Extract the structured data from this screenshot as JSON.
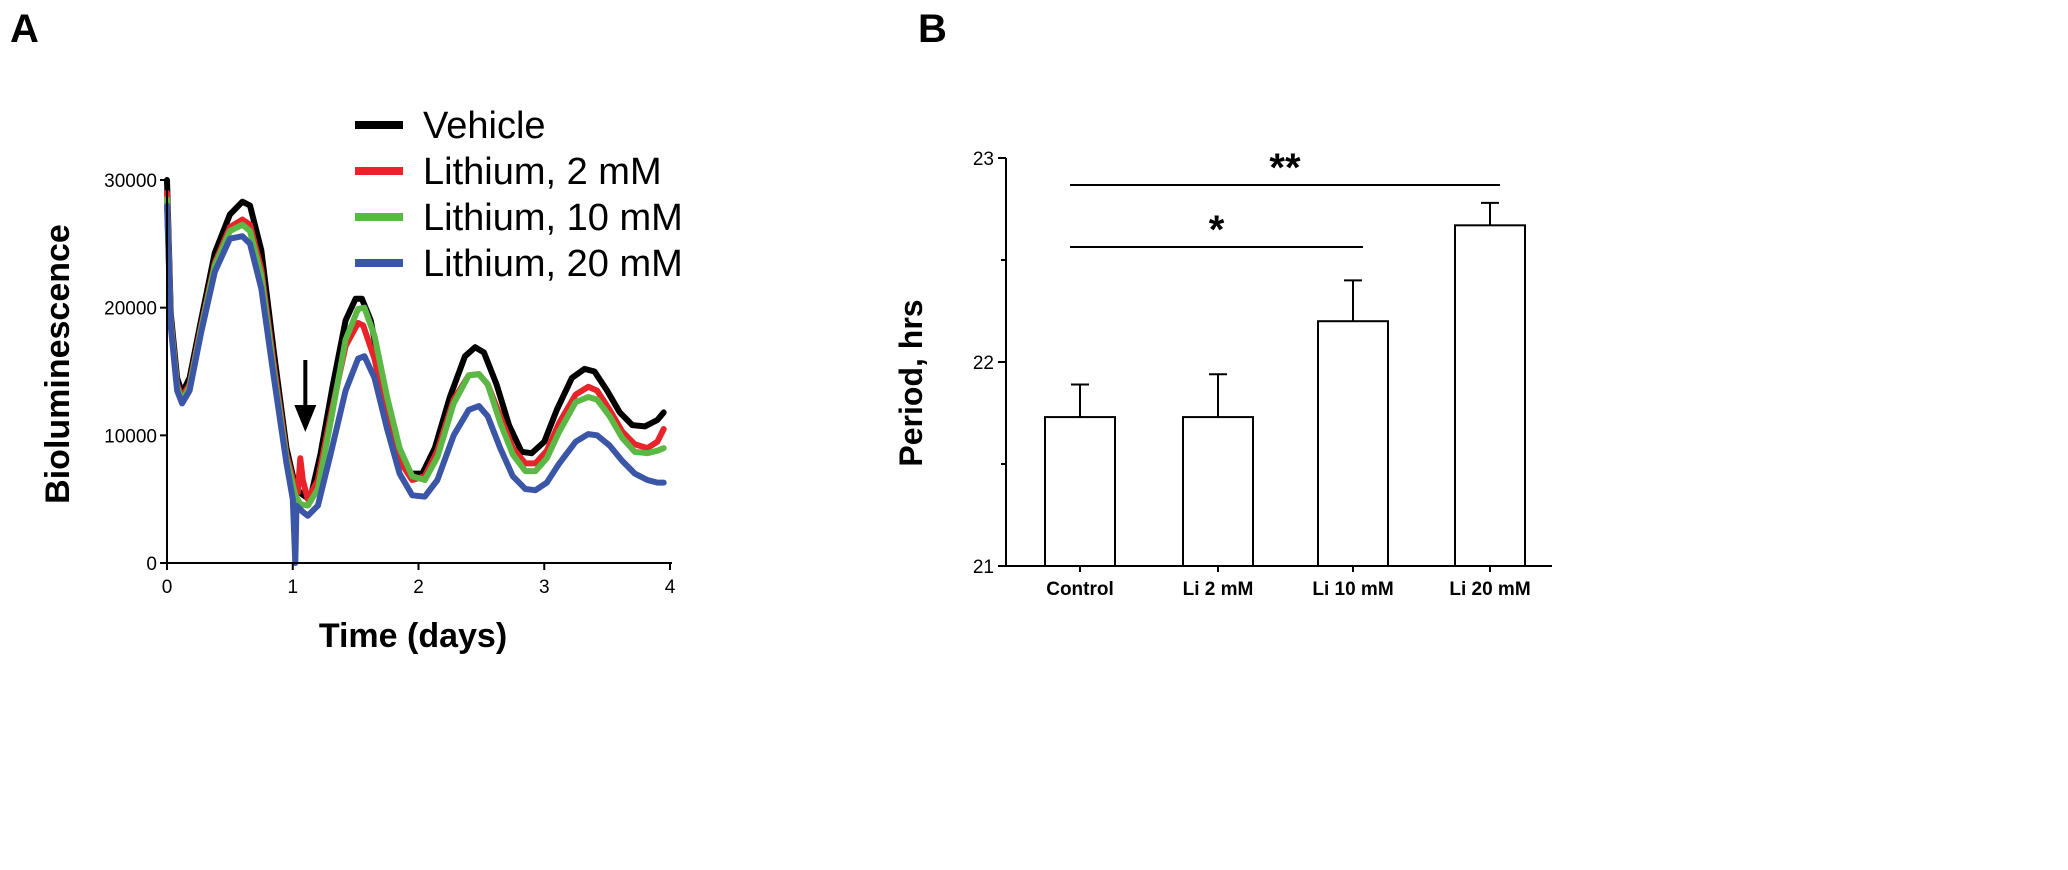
{
  "chart_data": [
    {
      "panel_label": "A",
      "type": "line",
      "xlabel": "Time (days)",
      "ylabel": "Bioluminescence",
      "xlim": [
        0,
        4
      ],
      "ylim": [
        0,
        30000
      ],
      "x_ticks": [
        0,
        1,
        2,
        3,
        4
      ],
      "y_ticks": [
        0,
        10000,
        20000,
        30000
      ],
      "x_tick_labels": [
        "0",
        "1",
        "2",
        "3",
        "4"
      ],
      "y_tick_labels": [
        "0",
        "10000",
        "20000",
        "30000"
      ],
      "legend_position": "top-right",
      "annotation": "arrow at day 1.1 (drug addition)",
      "series": [
        {
          "name": "Vehicle",
          "color": "#000000",
          "points": [
            [
              0,
              30000
            ],
            [
              0.03,
              19500
            ],
            [
              0.08,
              14500
            ],
            [
              0.12,
              13300
            ],
            [
              0.18,
              14500
            ],
            [
              0.27,
              19000
            ],
            [
              0.38,
              24300
            ],
            [
              0.5,
              27300
            ],
            [
              0.6,
              28300
            ],
            [
              0.66,
              28000
            ],
            [
              0.75,
              24500
            ],
            [
              0.85,
              16500
            ],
            [
              0.95,
              9000
            ],
            [
              1.02,
              6000
            ],
            [
              1.06,
              5500
            ],
            [
              1.1,
              5200
            ],
            [
              1.15,
              5500
            ],
            [
              1.22,
              8500
            ],
            [
              1.32,
              14000
            ],
            [
              1.42,
              19000
            ],
            [
              1.5,
              20700
            ],
            [
              1.55,
              20700
            ],
            [
              1.62,
              19000
            ],
            [
              1.72,
              14000
            ],
            [
              1.82,
              9500
            ],
            [
              1.92,
              7000
            ],
            [
              2.03,
              7000
            ],
            [
              2.13,
              9000
            ],
            [
              2.25,
              13000
            ],
            [
              2.37,
              16200
            ],
            [
              2.45,
              16900
            ],
            [
              2.52,
              16500
            ],
            [
              2.62,
              14000
            ],
            [
              2.72,
              10800
            ],
            [
              2.82,
              8700
            ],
            [
              2.9,
              8600
            ],
            [
              3.0,
              9500
            ],
            [
              3.1,
              12000
            ],
            [
              3.22,
              14500
            ],
            [
              3.32,
              15200
            ],
            [
              3.4,
              15000
            ],
            [
              3.5,
              13500
            ],
            [
              3.6,
              11800
            ],
            [
              3.7,
              10800
            ],
            [
              3.8,
              10700
            ],
            [
              3.9,
              11200
            ],
            [
              3.95,
              11800
            ]
          ]
        },
        {
          "name": "Lithium, 2 mM",
          "color": "#e8242a",
          "points": [
            [
              0,
              29000
            ],
            [
              0.03,
              19000
            ],
            [
              0.08,
              14000
            ],
            [
              0.12,
              13000
            ],
            [
              0.18,
              14000
            ],
            [
              0.27,
              18500
            ],
            [
              0.38,
              23500
            ],
            [
              0.5,
              26300
            ],
            [
              0.6,
              26900
            ],
            [
              0.66,
              26500
            ],
            [
              0.75,
              23000
            ],
            [
              0.85,
              15500
            ],
            [
              0.95,
              8500
            ],
            [
              1.02,
              5800
            ],
            [
              1.04,
              5500
            ],
            [
              1.06,
              8200
            ],
            [
              1.08,
              6500
            ],
            [
              1.12,
              5000
            ],
            [
              1.2,
              6500
            ],
            [
              1.3,
              11500
            ],
            [
              1.42,
              17000
            ],
            [
              1.52,
              18800
            ],
            [
              1.56,
              18600
            ],
            [
              1.65,
              16000
            ],
            [
              1.75,
              11500
            ],
            [
              1.85,
              8000
            ],
            [
              1.95,
              6500
            ],
            [
              2.05,
              6800
            ],
            [
              2.15,
              8800
            ],
            [
              2.28,
              12800
            ],
            [
              2.4,
              14700
            ],
            [
              2.48,
              14800
            ],
            [
              2.55,
              14000
            ],
            [
              2.65,
              11500
            ],
            [
              2.75,
              9000
            ],
            [
              2.85,
              7800
            ],
            [
              2.93,
              7800
            ],
            [
              3.02,
              8800
            ],
            [
              3.12,
              11000
            ],
            [
              3.25,
              13200
            ],
            [
              3.35,
              13800
            ],
            [
              3.42,
              13500
            ],
            [
              3.52,
              12000
            ],
            [
              3.62,
              10300
            ],
            [
              3.72,
              9300
            ],
            [
              3.82,
              9000
            ],
            [
              3.9,
              9500
            ],
            [
              3.95,
              10500
            ]
          ]
        },
        {
          "name": "Lithium, 10 mM",
          "color": "#5cb845",
          "points": [
            [
              0,
              28500
            ],
            [
              0.03,
              18800
            ],
            [
              0.08,
              13800
            ],
            [
              0.12,
              12700
            ],
            [
              0.18,
              13800
            ],
            [
              0.27,
              18300
            ],
            [
              0.38,
              23300
            ],
            [
              0.5,
              26000
            ],
            [
              0.6,
              26500
            ],
            [
              0.66,
              26000
            ],
            [
              0.75,
              22500
            ],
            [
              0.85,
              15000
            ],
            [
              0.95,
              8200
            ],
            [
              1.02,
              5300
            ],
            [
              1.06,
              4600
            ],
            [
              1.12,
              4500
            ],
            [
              1.2,
              5800
            ],
            [
              1.3,
              11000
            ],
            [
              1.42,
              17500
            ],
            [
              1.52,
              19900
            ],
            [
              1.57,
              20000
            ],
            [
              1.65,
              17800
            ],
            [
              1.75,
              13000
            ],
            [
              1.85,
              9000
            ],
            [
              1.95,
              6800
            ],
            [
              2.05,
              6500
            ],
            [
              2.15,
              8300
            ],
            [
              2.28,
              12500
            ],
            [
              2.4,
              14700
            ],
            [
              2.48,
              14800
            ],
            [
              2.55,
              14000
            ],
            [
              2.65,
              11000
            ],
            [
              2.75,
              8500
            ],
            [
              2.85,
              7200
            ],
            [
              2.93,
              7200
            ],
            [
              3.02,
              8200
            ],
            [
              3.12,
              10300
            ],
            [
              3.25,
              12600
            ],
            [
              3.35,
              13000
            ],
            [
              3.42,
              12800
            ],
            [
              3.52,
              11500
            ],
            [
              3.62,
              9800
            ],
            [
              3.72,
              8700
            ],
            [
              3.82,
              8600
            ],
            [
              3.9,
              8800
            ],
            [
              3.95,
              9000
            ]
          ]
        },
        {
          "name": "Lithium, 20 mM",
          "color": "#3b56a6",
          "points": [
            [
              0,
              28000
            ],
            [
              0.03,
              18500
            ],
            [
              0.08,
              13500
            ],
            [
              0.12,
              12500
            ],
            [
              0.18,
              13500
            ],
            [
              0.27,
              18000
            ],
            [
              0.38,
              22800
            ],
            [
              0.5,
              25400
            ],
            [
              0.6,
              25600
            ],
            [
              0.66,
              25000
            ],
            [
              0.75,
              21500
            ],
            [
              0.85,
              14500
            ],
            [
              0.95,
              7800
            ],
            [
              1.0,
              5000
            ],
            [
              1.02,
              0
            ],
            [
              1.03,
              4500
            ],
            [
              1.08,
              4000
            ],
            [
              1.12,
              3700
            ],
            [
              1.2,
              4500
            ],
            [
              1.3,
              8500
            ],
            [
              1.42,
              13500
            ],
            [
              1.52,
              16000
            ],
            [
              1.57,
              16200
            ],
            [
              1.65,
              14500
            ],
            [
              1.75,
              10500
            ],
            [
              1.85,
              7000
            ],
            [
              1.95,
              5300
            ],
            [
              2.05,
              5200
            ],
            [
              2.15,
              6500
            ],
            [
              2.28,
              10000
            ],
            [
              2.4,
              12000
            ],
            [
              2.48,
              12300
            ],
            [
              2.55,
              11500
            ],
            [
              2.65,
              9000
            ],
            [
              2.75,
              6800
            ],
            [
              2.85,
              5800
            ],
            [
              2.93,
              5700
            ],
            [
              3.02,
              6300
            ],
            [
              3.12,
              7800
            ],
            [
              3.25,
              9500
            ],
            [
              3.35,
              10100
            ],
            [
              3.42,
              10000
            ],
            [
              3.52,
              9200
            ],
            [
              3.62,
              8000
            ],
            [
              3.72,
              7000
            ],
            [
              3.82,
              6500
            ],
            [
              3.9,
              6300
            ],
            [
              3.95,
              6300
            ]
          ]
        }
      ]
    },
    {
      "panel_label": "B",
      "type": "bar",
      "xlabel": "",
      "ylabel": "Period, hrs",
      "ylim": [
        21,
        23
      ],
      "y_ticks": [
        21,
        22,
        23
      ],
      "y_tick_labels": [
        "21",
        "22",
        "23"
      ],
      "categories": [
        "Control",
        "Li 2 mM",
        "Li 10 mM",
        "Li 20 mM"
      ],
      "values": [
        21.73,
        21.73,
        22.2,
        22.67
      ],
      "errors": [
        0.16,
        0.21,
        0.2,
        0.11
      ],
      "bar_fill": "#ffffff",
      "bar_stroke": "#000000",
      "significance": [
        {
          "from": "Control",
          "to": "Li 10 mM",
          "label": "*"
        },
        {
          "from": "Control",
          "to": "Li 20 mM",
          "label": "**"
        }
      ]
    }
  ]
}
